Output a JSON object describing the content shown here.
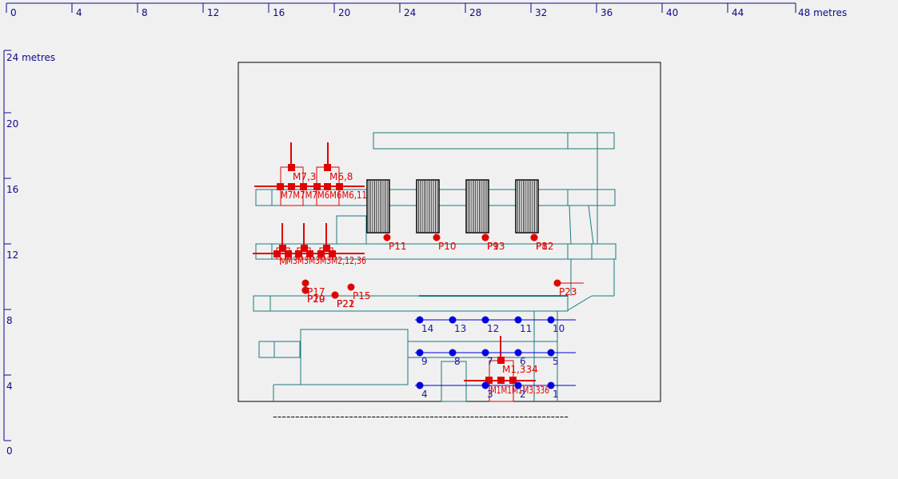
{
  "x_axis": {
    "ticks": [
      "0",
      "4",
      "8",
      "12",
      "16",
      "20",
      "24",
      "28",
      "32",
      "36",
      "40",
      "44"
    ],
    "end_label": "48 metres",
    "color": "#0a0a8a"
  },
  "y_axis": {
    "top_label": "24 metres",
    "ticks": [
      "20",
      "16",
      "12",
      "8",
      "4"
    ],
    "bottom_label": "0",
    "color": "#0a0a8a"
  },
  "colors": {
    "background": "#f0f0f0",
    "frame": "#000000",
    "structure": "#1a7a80",
    "red_markers": "#e00000",
    "blue_markers": "#0000e0"
  },
  "blue_points": [
    {
      "label": "14"
    },
    {
      "label": "13"
    },
    {
      "label": "12"
    },
    {
      "label": "11"
    },
    {
      "label": "10"
    },
    {
      "label": "9"
    },
    {
      "label": "8"
    },
    {
      "label": "7"
    },
    {
      "label": "6"
    },
    {
      "label": "5"
    },
    {
      "label": "4"
    },
    {
      "label": "3"
    },
    {
      "label": "2"
    },
    {
      "label": "1"
    }
  ],
  "red_points": [
    {
      "label": "P11"
    },
    {
      "label": "P10"
    },
    {
      "label": "P9"
    },
    {
      "label": "P13"
    },
    {
      "label": "P8"
    },
    {
      "label": "P12"
    },
    {
      "label": "P23"
    },
    {
      "label": "P17"
    },
    {
      "label": "P19"
    },
    {
      "label": "P20"
    },
    {
      "label": "P21"
    },
    {
      "label": "P22"
    },
    {
      "label": "P15"
    }
  ],
  "red_labels": [
    "M7,3",
    "M6,8",
    "M7M7M7M6M6M6,11",
    "M",
    "M1,334",
    "M1M1M1M3,336"
  ],
  "dashed_line": "------------------------------------------------------------------"
}
